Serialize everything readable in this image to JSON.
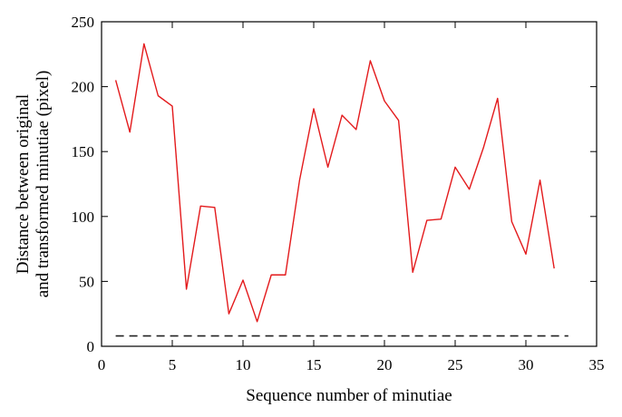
{
  "chart_data": {
    "type": "line",
    "title": "",
    "xlabel": "Sequence number of minutiae",
    "ylabel_lines": [
      "Distance between original",
      "and transformed minutiae (pixel)"
    ],
    "xlim": [
      0,
      35
    ],
    "ylim": [
      0,
      250
    ],
    "xticks": [
      0,
      5,
      10,
      15,
      20,
      25,
      30,
      35
    ],
    "yticks": [
      0,
      50,
      100,
      150,
      200,
      250
    ],
    "grid": false,
    "legend": "none",
    "series": [
      {
        "style": "solid",
        "color": "#e31a1c",
        "x": [
          1,
          2,
          3,
          4,
          5,
          6,
          7,
          8,
          9,
          10,
          11,
          12,
          13,
          14,
          15,
          16,
          17,
          18,
          19,
          20,
          21,
          22,
          23,
          24,
          25,
          26,
          27,
          28,
          29,
          30,
          31,
          32
        ],
        "values": [
          205,
          165,
          233,
          193,
          185,
          44,
          108,
          107,
          25,
          51,
          19,
          55,
          55,
          128,
          183,
          138,
          178,
          167,
          220,
          189,
          174,
          57,
          97,
          98,
          138,
          121,
          153,
          191,
          96,
          71,
          128,
          60
        ]
      },
      {
        "style": "dashed",
        "color": "#222222",
        "x": [
          1,
          33
        ],
        "values": [
          8,
          8
        ]
      }
    ]
  }
}
